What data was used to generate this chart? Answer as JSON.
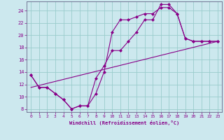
{
  "xlabel": "Windchill (Refroidissement éolien,°C)",
  "bg_color": "#cce8ee",
  "line_color": "#880088",
  "grid_color": "#99cccc",
  "xlim": [
    -0.5,
    23.5
  ],
  "ylim": [
    7.5,
    25.5
  ],
  "yticks": [
    8,
    10,
    12,
    14,
    16,
    18,
    20,
    22,
    24
  ],
  "xticks": [
    0,
    1,
    2,
    3,
    4,
    5,
    6,
    7,
    8,
    9,
    10,
    11,
    12,
    13,
    14,
    15,
    16,
    17,
    18,
    19,
    20,
    21,
    22,
    23
  ],
  "line1_x": [
    0,
    1,
    2,
    3,
    4,
    5,
    6,
    7,
    8,
    9,
    10,
    11,
    12,
    13,
    14,
    15,
    16,
    17,
    18,
    19,
    20,
    21,
    22,
    23
  ],
  "line1_y": [
    13.5,
    11.5,
    11.5,
    10.5,
    9.5,
    8.0,
    8.5,
    8.5,
    13.0,
    15.0,
    17.5,
    17.5,
    19.0,
    20.5,
    22.5,
    22.5,
    25.0,
    25.0,
    23.5,
    19.5,
    19.0,
    19.0,
    19.0,
    19.0
  ],
  "line2_x": [
    0,
    1,
    2,
    3,
    4,
    5,
    6,
    7,
    8,
    9,
    10,
    11,
    12,
    13,
    14,
    15,
    16,
    17,
    18,
    19,
    20,
    21,
    22,
    23
  ],
  "line2_y": [
    13.5,
    11.5,
    11.5,
    10.5,
    9.5,
    8.0,
    8.5,
    8.5,
    10.5,
    14.0,
    20.5,
    22.5,
    22.5,
    23.0,
    23.5,
    23.5,
    24.5,
    24.5,
    23.5,
    19.5,
    19.0,
    19.0,
    19.0,
    19.0
  ],
  "line3_x": [
    0,
    23
  ],
  "line3_y": [
    11.5,
    19.0
  ]
}
